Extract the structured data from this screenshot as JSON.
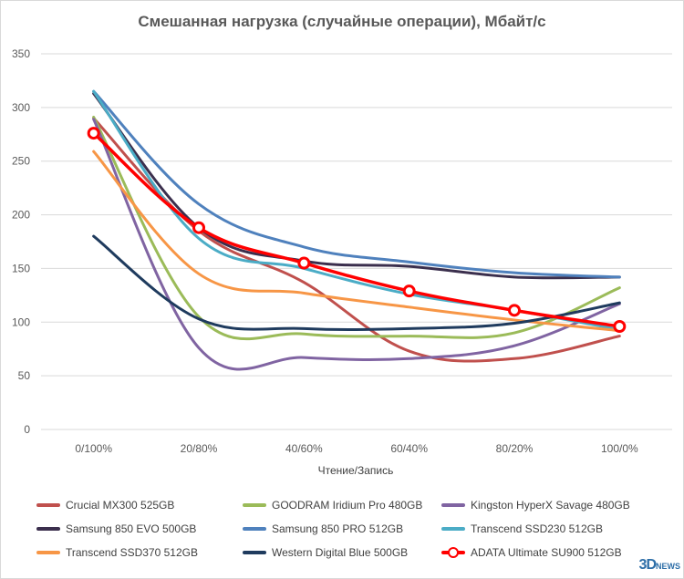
{
  "chart_data": {
    "type": "line",
    "title": "Смешанная нагрузка (случайные операции), Мбайт/с",
    "xlabel": "Чтение/Запись",
    "ylabel": "",
    "categories": [
      "0/100%",
      "20/80%",
      "40/60%",
      "60/40%",
      "80/20%",
      "100/0%"
    ],
    "ylim": [
      0,
      350
    ],
    "yticks": [
      0,
      50,
      100,
      150,
      200,
      250,
      300,
      350
    ],
    "grid": true,
    "legend_position": "bottom",
    "series": [
      {
        "name": "Crucial MX300 525GB",
        "color": "#c0504d",
        "values": [
          290,
          185,
          137,
          73,
          66,
          87
        ],
        "marker": false
      },
      {
        "name": "GOODRAM Iridium Pro 480GB",
        "color": "#9bbb59",
        "values": [
          291,
          105,
          89,
          87,
          90,
          132
        ],
        "marker": false
      },
      {
        "name": "Kingston HyperX Savage 480GB",
        "color": "#8064a2",
        "values": [
          289,
          76,
          67,
          66,
          78,
          117
        ],
        "marker": false
      },
      {
        "name": "Samsung 850 EVO 500GB",
        "color": "#3b2f4d",
        "values": [
          313,
          188,
          157,
          152,
          142,
          142
        ],
        "marker": false
      },
      {
        "name": "Samsung 850 PRO 512GB",
        "color": "#4f81bd",
        "values": [
          315,
          210,
          170,
          156,
          146,
          142
        ],
        "marker": false
      },
      {
        "name": "Transcend SSD230 512GB",
        "color": "#4bacc6",
        "values": [
          315,
          178,
          150,
          126,
          111,
          93
        ],
        "marker": false
      },
      {
        "name": "Transcend SSD370 512GB",
        "color": "#f79646",
        "values": [
          259,
          145,
          127,
          114,
          102,
          92
        ],
        "marker": false
      },
      {
        "name": "Western Digital Blue 500GB",
        "color": "#1f3b5e",
        "values": [
          180,
          103,
          94,
          94,
          99,
          118
        ],
        "marker": false
      },
      {
        "name": "ADATA Ultimate SU900 512GB",
        "color": "#ff0000",
        "values": [
          276,
          188,
          155,
          129,
          111,
          96
        ],
        "marker": true
      }
    ]
  },
  "watermark": {
    "brand": "3D",
    "brand_suffix": "NEWS"
  }
}
